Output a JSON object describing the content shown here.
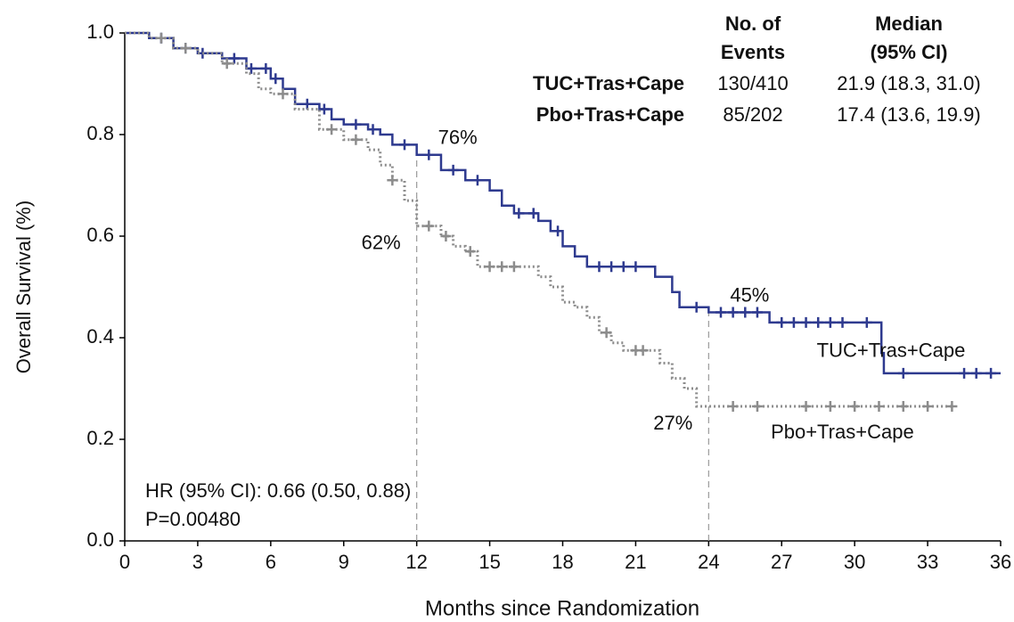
{
  "chart_data": {
    "type": "step",
    "x_label": "Months since Randomization",
    "y_label": "Overall Survival  (%)",
    "xlim": [
      0,
      36
    ],
    "xticks": [
      0,
      3,
      6,
      9,
      12,
      15,
      18,
      21,
      24,
      27,
      30,
      33,
      36
    ],
    "ylim": [
      0,
      1
    ],
    "yticks": [
      {
        "value": 0,
        "label": "0.0"
      },
      {
        "value": 0.2,
        "label": "0.2"
      },
      {
        "value": 0.4,
        "label": "0.4"
      },
      {
        "value": 0.6,
        "label": "0.6"
      },
      {
        "value": 0.8,
        "label": "0.8"
      },
      {
        "value": 1,
        "label": "1.0"
      }
    ],
    "series": [
      {
        "name": "TUC+Tras+Cape",
        "color": "#2e3a8f",
        "line_style": "solid",
        "x": [
          0,
          1,
          2,
          3,
          4,
          5,
          6,
          6.5,
          7,
          8,
          8.5,
          9,
          10,
          10.5,
          11,
          12,
          13,
          14,
          15,
          15.5,
          16,
          17,
          17.5,
          18,
          18.5,
          19,
          21.8,
          22.5,
          22.8,
          24,
          26.5,
          31,
          31.1,
          31.2,
          36
        ],
        "values": [
          1.0,
          0.99,
          0.97,
          0.96,
          0.95,
          0.93,
          0.91,
          0.89,
          0.86,
          0.85,
          0.83,
          0.82,
          0.81,
          0.8,
          0.78,
          0.76,
          0.73,
          0.71,
          0.69,
          0.66,
          0.645,
          0.63,
          0.61,
          0.58,
          0.56,
          0.54,
          0.52,
          0.49,
          0.46,
          0.45,
          0.43,
          0.43,
          0.37,
          0.33,
          0.33
        ],
        "censored": [
          1.5,
          2.5,
          3.2,
          4.5,
          5.2,
          5.8,
          6.2,
          7.5,
          8.2,
          9.5,
          10.2,
          11.5,
          12.5,
          13.5,
          14.5,
          16.2,
          16.8,
          17.8,
          19.5,
          20,
          20.5,
          21,
          23.5,
          24.5,
          25,
          25.5,
          26,
          27,
          27.5,
          28,
          28.5,
          29,
          29.5,
          30.5,
          32,
          34.5,
          35,
          35.6
        ],
        "end_label_position": "above"
      },
      {
        "name": "Pbo+Tras+Cape",
        "color": "#8c8c8c",
        "line_style": "dotted",
        "x": [
          0,
          1,
          2,
          3,
          4,
          5,
          5.5,
          6,
          7,
          8,
          9,
          10,
          10.5,
          11,
          11.5,
          12,
          13,
          13.5,
          14,
          14.5,
          17,
          17.5,
          18,
          18.5,
          19,
          19.5,
          20,
          20.5,
          22,
          22.5,
          23,
          23.5,
          34
        ],
        "values": [
          1.0,
          0.99,
          0.97,
          0.96,
          0.94,
          0.92,
          0.89,
          0.88,
          0.85,
          0.81,
          0.79,
          0.77,
          0.74,
          0.71,
          0.67,
          0.62,
          0.6,
          0.58,
          0.57,
          0.54,
          0.52,
          0.5,
          0.47,
          0.46,
          0.44,
          0.41,
          0.39,
          0.375,
          0.35,
          0.32,
          0.3,
          0.265,
          0.265
        ],
        "censored": [
          1.5,
          2.5,
          4.2,
          6.5,
          8.5,
          9.5,
          11,
          12.5,
          13.2,
          14.2,
          15,
          15.5,
          16,
          19.8,
          21,
          21.3,
          25,
          26,
          28,
          29,
          30,
          31,
          32,
          33,
          34
        ],
        "end_label_position": "below"
      }
    ],
    "reference_x": [
      12,
      24
    ],
    "annotations": [
      {
        "text": "76%",
        "x": 12,
        "y": 0.76,
        "position": "above-right"
      },
      {
        "text": "62%",
        "x": 12,
        "y": 0.62,
        "position": "below-left"
      },
      {
        "text": "45%",
        "x": 24,
        "y": 0.45,
        "position": "above-right"
      },
      {
        "text": "27%",
        "x": 24,
        "y": 0.265,
        "position": "below-left"
      }
    ],
    "hr_text": "HR (95% CI): 0.66 (0.50, 0.88)",
    "p_text": "P=0.00480",
    "summary_table": {
      "columns": [
        [
          "No. of",
          "Events"
        ],
        [
          "Median",
          "(95% CI)"
        ]
      ],
      "rows": [
        [
          "130/410",
          "21.9 (18.3, 31.0)"
        ],
        [
          "85/202",
          "17.4 (13.6, 19.9)"
        ]
      ]
    }
  }
}
